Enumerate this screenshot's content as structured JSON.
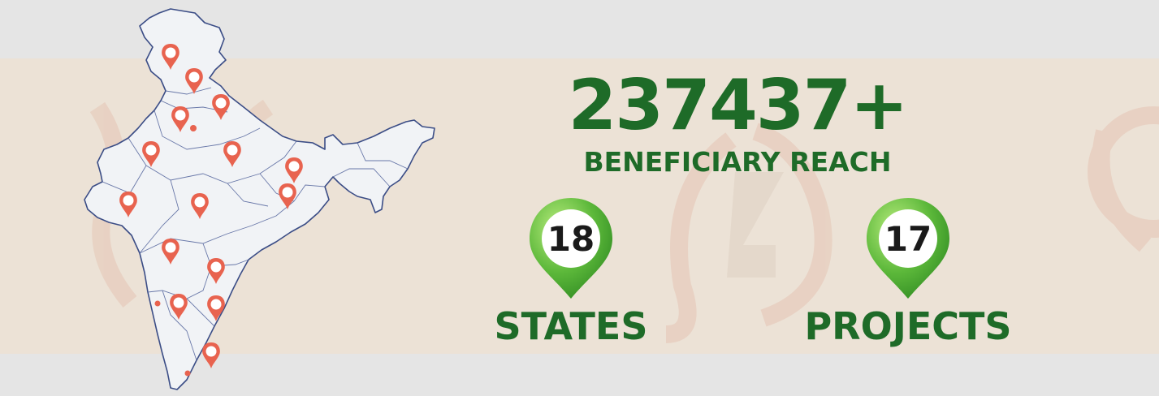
{
  "beneficiary": {
    "count": "237437+",
    "label": "BENEFICIARY REACH"
  },
  "stats": [
    {
      "number": "18",
      "label": "STATES"
    },
    {
      "number": "17",
      "label": "PROJECTS"
    }
  ],
  "colors": {
    "brand_green": "#1e6b28",
    "band_beige": "#ece2d6",
    "page_gray": "#e5e5e5",
    "pin_red": "#e8634f",
    "map_fill": "#f1f3f6",
    "map_outline": "#3b4d86"
  },
  "icons": [
    "india-map-icon",
    "location-pin-icon",
    "marker-badge-icon"
  ]
}
